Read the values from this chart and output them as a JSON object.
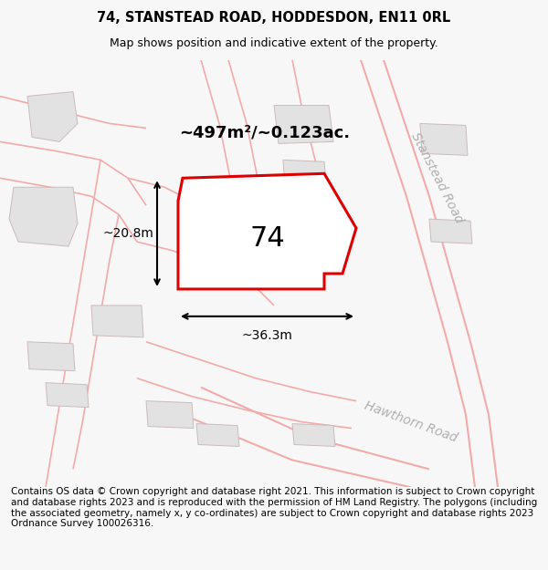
{
  "title": "74, STANSTEAD ROAD, HODDESDON, EN11 0RL",
  "subtitle": "Map shows position and indicative extent of the property.",
  "footer": "Contains OS data © Crown copyright and database right 2021. This information is subject to Crown copyright and database rights 2023 and is reproduced with the permission of HM Land Registry. The polygons (including the associated geometry, namely x, y co-ordinates) are subject to Crown copyright and database rights 2023 Ordnance Survey 100026316.",
  "area_label": "~497m²/~0.123ac.",
  "width_label": "~36.3m",
  "height_label": "~20.8m",
  "number_label": "74",
  "road_label_1": "Stanstead Road",
  "road_label_2": "Hawthorn Road",
  "bg_color": "#f7f7f7",
  "map_bg": "#ffffff",
  "property_fill": "#ffffff",
  "property_edge": "#dd0000",
  "road_line_color": "#f2aaaa",
  "building_fill": "#e2e2e2",
  "building_edge": "#ccbbbb",
  "title_fontsize": 10.5,
  "subtitle_fontsize": 9,
  "footer_fontsize": 7.5
}
